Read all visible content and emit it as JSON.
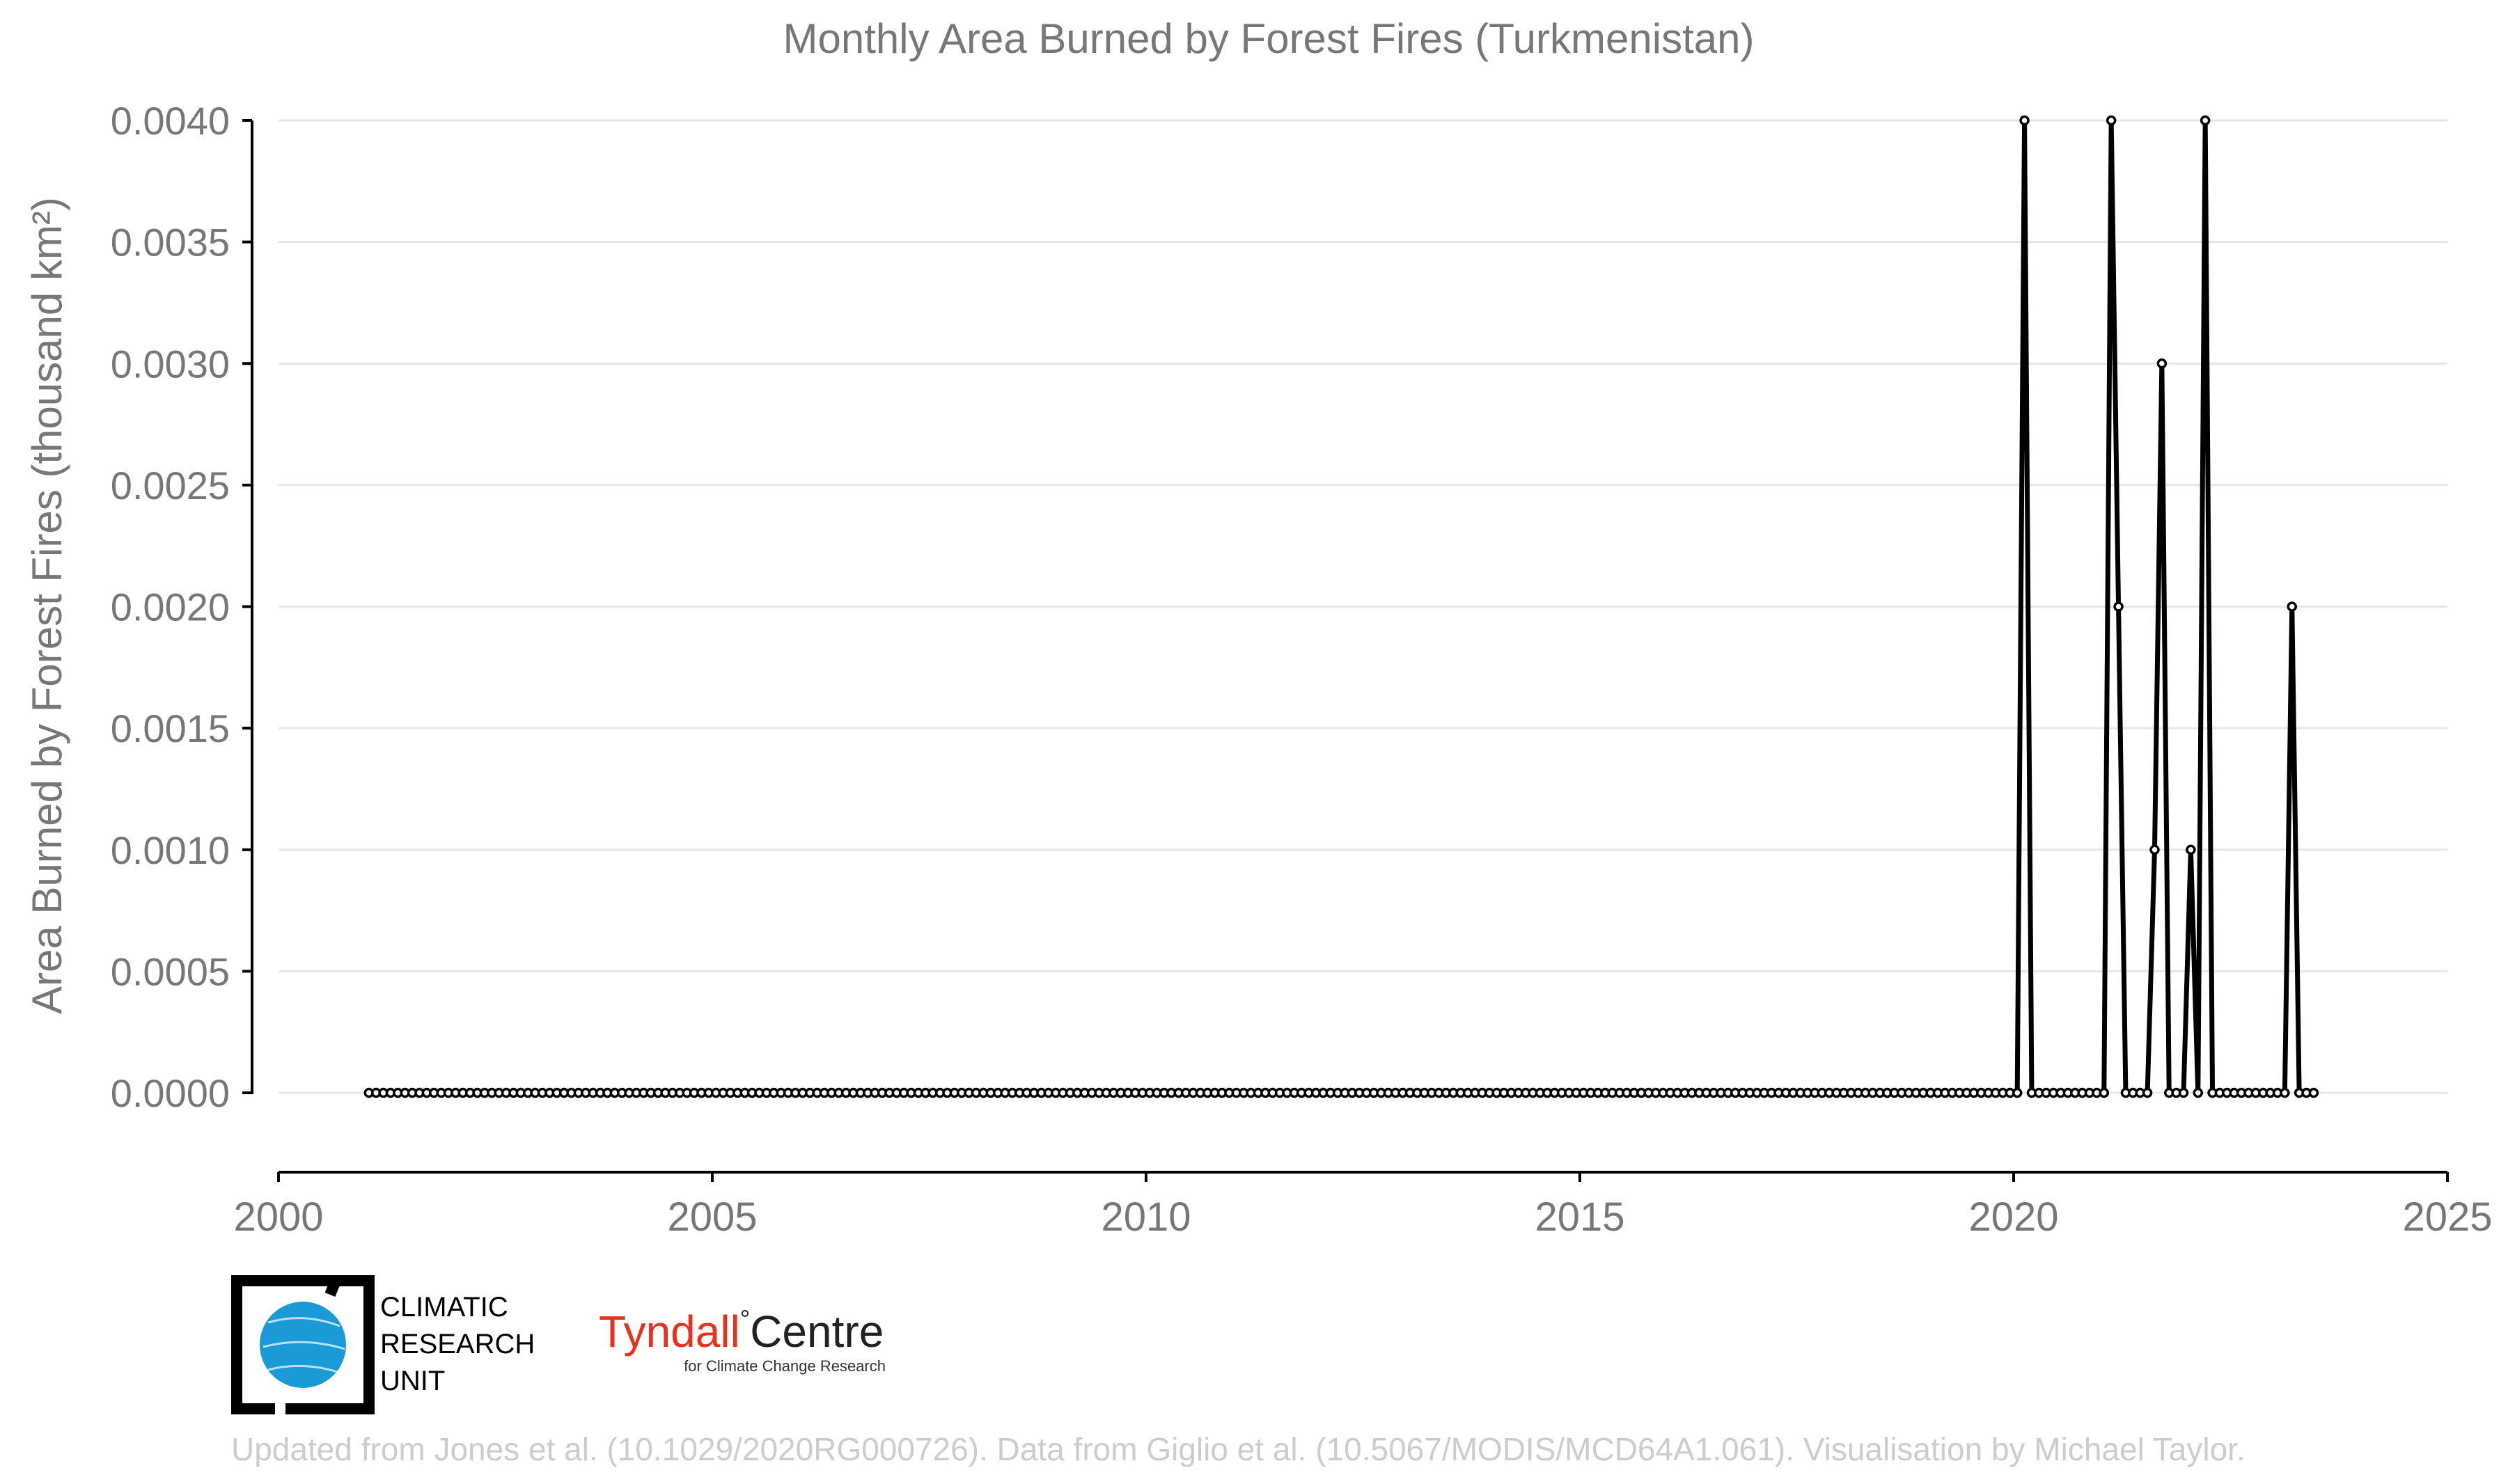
{
  "chart_data": {
    "type": "line",
    "title": "Monthly Area Burned by Forest Fires (Turkmenistan)",
    "xlabel": "",
    "ylabel": "Area Burned by Forest Fires (thousand km²)",
    "xlim": [
      2000,
      2025
    ],
    "ylim": [
      0,
      0.004
    ],
    "x_ticks": [
      2000,
      2005,
      2010,
      2015,
      2020,
      2025
    ],
    "y_ticks": [
      "0.0000",
      "0.0005",
      "0.0010",
      "0.0015",
      "0.0020",
      "0.0025",
      "0.0030",
      "0.0035",
      "0.0040"
    ],
    "grid": true,
    "start": "2001-01",
    "end": "2023-06",
    "baseline_value": 0,
    "nonzero_months": {
      "2020-02": 0.004,
      "2021-02": 0.004,
      "2021-03": 0.002,
      "2021-08": 0.001,
      "2021-09": 0.003,
      "2022-01": 0.001,
      "2022-03": 0.004,
      "2023-03": 0.002
    },
    "marker_color": "#ffffff",
    "line_color": "#000000"
  },
  "logos": {
    "cru_line1": "CLIMATIC",
    "cru_line2": "RESEARCH",
    "cru_line3": "UNIT",
    "tyndall_red": "Tyndall",
    "tyndall_degree": "°",
    "tyndall_black": "Centre",
    "tyndall_sub": "for Climate Change Research"
  },
  "footer": {
    "credit": "Updated from Jones et al. (10.1029/2020RG000726). Data from Giglio et al. (10.5067/MODIS/MCD64A1.061). Visualisation by Michael Taylor."
  }
}
